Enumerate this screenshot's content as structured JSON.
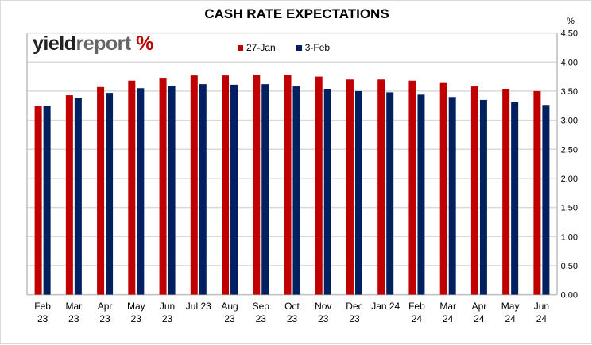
{
  "logo": {
    "text1": "yield",
    "text2": "report",
    "pct": "%"
  },
  "chart_data": {
    "type": "bar",
    "title": "CASH RATE EXPECTATIONS",
    "ylabel": "%",
    "ylim": [
      0,
      4.5
    ],
    "yticks": [
      "0.00",
      "0.50",
      "1.00",
      "1.50",
      "2.00",
      "2.50",
      "3.00",
      "3.50",
      "4.00",
      "4.50"
    ],
    "grid": true,
    "legend_position": "top",
    "categories": [
      [
        "Feb",
        "23"
      ],
      [
        "Mar",
        "23"
      ],
      [
        "Apr",
        "23"
      ],
      [
        "May",
        "23"
      ],
      [
        "Jun",
        "23"
      ],
      [
        "Jul 23",
        ""
      ],
      [
        "Aug",
        "23"
      ],
      [
        "Sep",
        "23"
      ],
      [
        "Oct",
        "23"
      ],
      [
        "Nov",
        "23"
      ],
      [
        "Dec",
        "23"
      ],
      [
        "Jan 24",
        ""
      ],
      [
        "Feb",
        "24"
      ],
      [
        "Mar",
        "24"
      ],
      [
        "Apr",
        "24"
      ],
      [
        "May",
        "24"
      ],
      [
        "Jun",
        "24"
      ]
    ],
    "series": [
      {
        "name": "27-Jan",
        "color": "#c00000",
        "values": [
          3.24,
          3.43,
          3.57,
          3.68,
          3.73,
          3.77,
          3.77,
          3.78,
          3.78,
          3.75,
          3.7,
          3.7,
          3.68,
          3.64,
          3.58,
          3.54,
          3.5
        ]
      },
      {
        "name": "3-Feb",
        "color": "#002060",
        "values": [
          3.24,
          3.39,
          3.47,
          3.55,
          3.59,
          3.62,
          3.61,
          3.62,
          3.58,
          3.54,
          3.5,
          3.48,
          3.44,
          3.4,
          3.35,
          3.31,
          3.25
        ]
      }
    ]
  }
}
